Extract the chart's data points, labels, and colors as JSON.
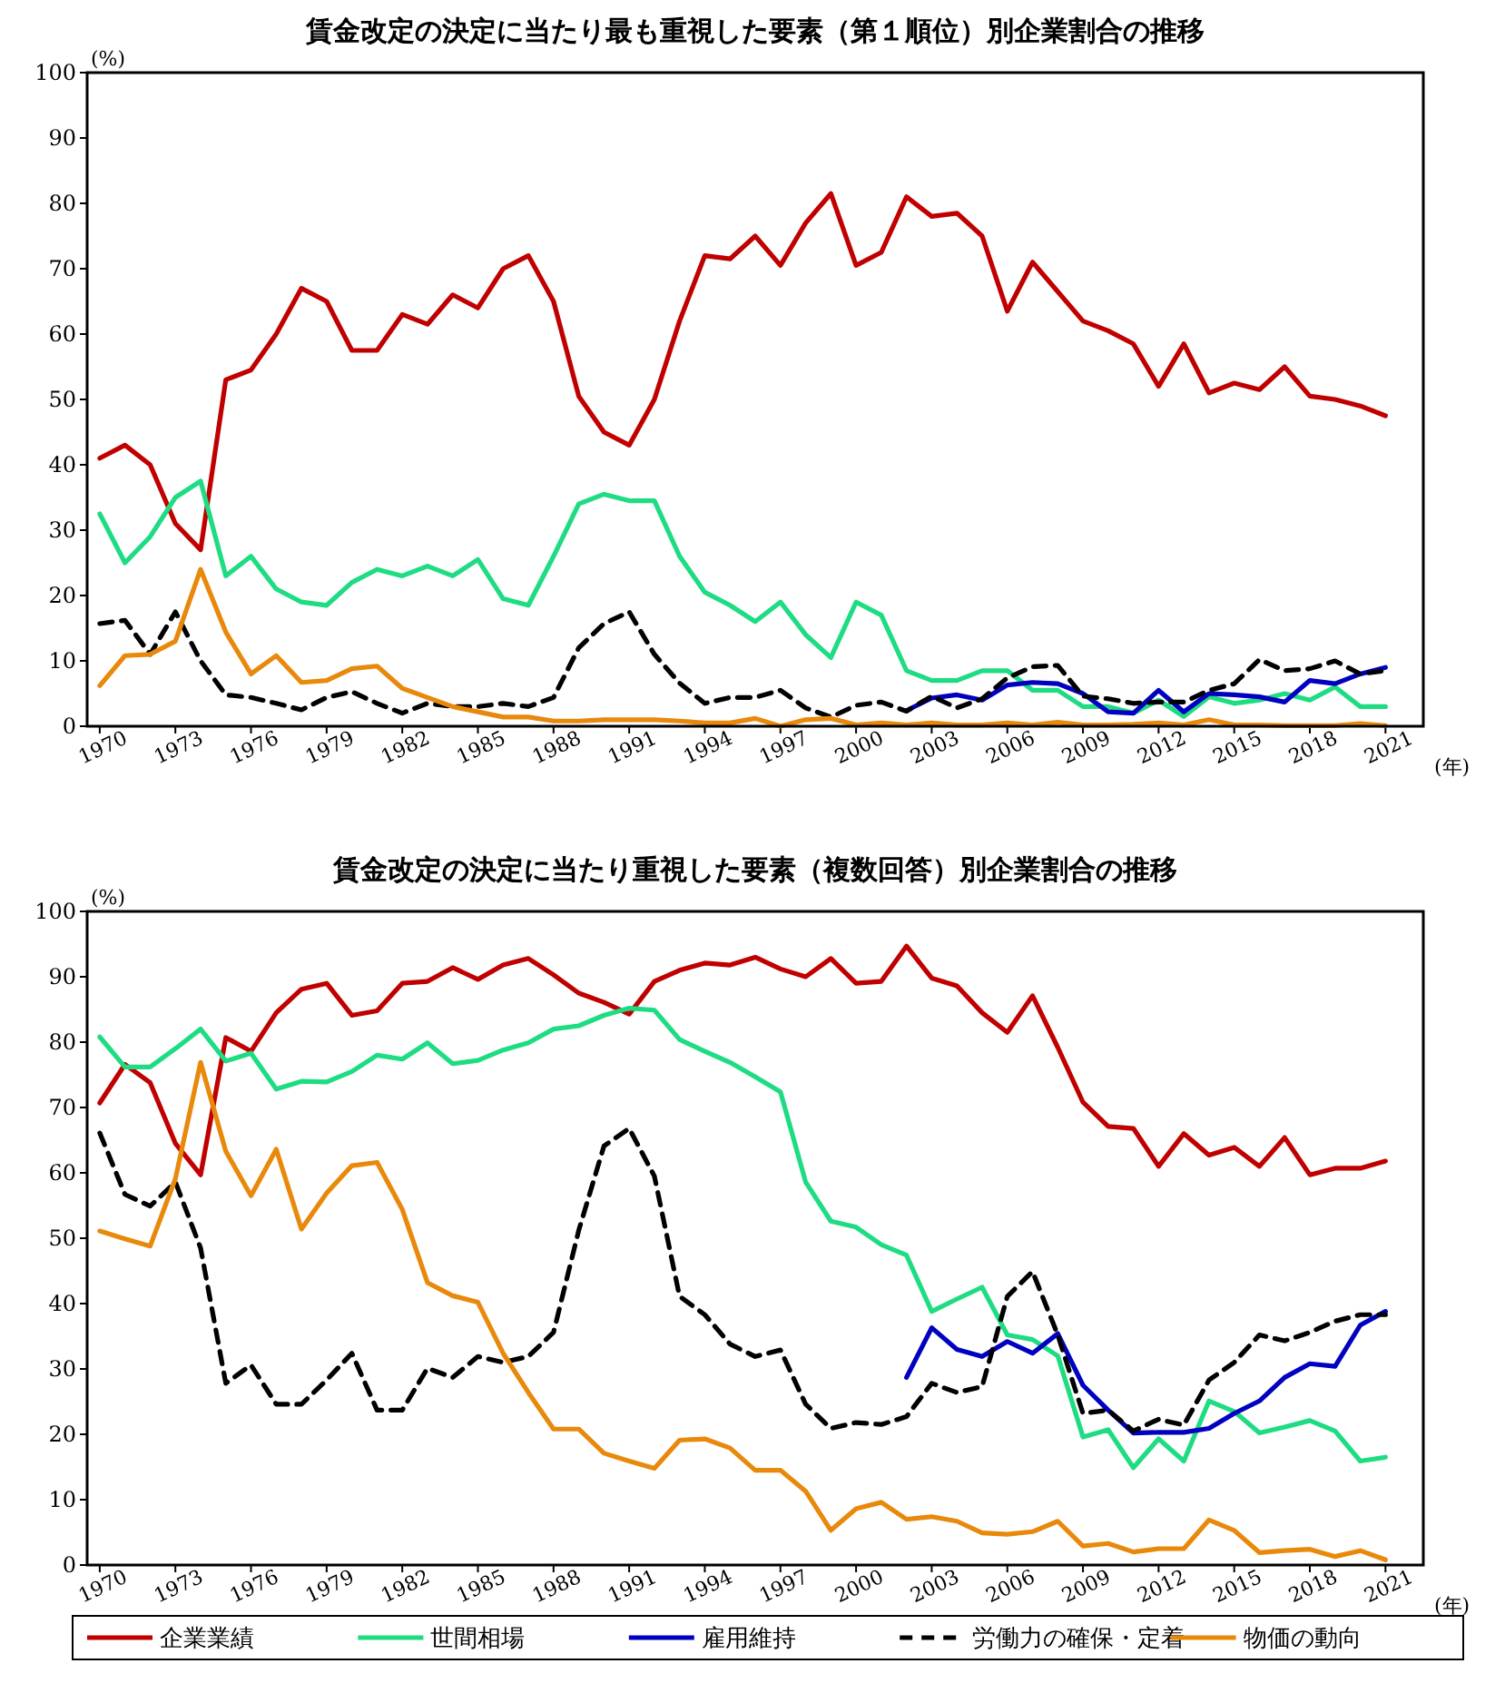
{
  "chart_data": [
    {
      "type": "line",
      "title": "賃金改定の決定に当たり最も重視した要素（第１順位）別企業割合の推移",
      "ylabel": "(%)",
      "xlabel": "(年)",
      "xlim": [
        1969.5,
        2022.5
      ],
      "ylim": [
        0,
        100
      ],
      "xticks": [
        1970,
        1973,
        1976,
        1979,
        1982,
        1985,
        1988,
        1991,
        1994,
        1997,
        2000,
        2003,
        2006,
        2009,
        2012,
        2015,
        2018,
        2021
      ],
      "yticks": [
        0,
        10,
        20,
        30,
        40,
        50,
        60,
        70,
        80,
        90,
        100
      ],
      "grid": false,
      "legend": false,
      "x": [
        1970,
        1971,
        1972,
        1973,
        1974,
        1975,
        1976,
        1977,
        1978,
        1979,
        1980,
        1981,
        1982,
        1983,
        1984,
        1985,
        1986,
        1987,
        1988,
        1989,
        1990,
        1991,
        1992,
        1993,
        1994,
        1995,
        1996,
        1997,
        1998,
        1999,
        2000,
        2001,
        2002,
        2003,
        2004,
        2005,
        2006,
        2007,
        2008,
        2009,
        2010,
        2011,
        2012,
        2013,
        2014,
        2015,
        2016,
        2017,
        2018,
        2019,
        2020,
        2021
      ],
      "series": [
        {
          "color": "#c00000",
          "values": [
            41,
            43,
            40,
            31,
            27,
            53,
            54.5,
            60,
            67,
            65,
            57.5,
            57.5,
            63,
            61.5,
            66,
            64,
            70,
            72,
            65,
            50.5,
            45,
            43,
            50,
            62,
            72,
            71.5,
            75,
            70.5,
            77,
            81.5,
            70.5,
            72.5,
            81,
            78,
            78.5,
            75,
            63.5,
            71,
            66.5,
            62,
            60.5,
            58.5,
            52,
            58.5,
            51,
            52.5,
            51.5,
            55,
            50.5,
            50,
            49,
            47.5
          ]
        },
        {
          "color": "#1edc82",
          "values": [
            32.5,
            25,
            29,
            35,
            37.5,
            23,
            26,
            21,
            19,
            18.5,
            22,
            24,
            23,
            24.5,
            23,
            25.5,
            19.5,
            18.5,
            26,
            34,
            35.5,
            34.5,
            34.5,
            26,
            20.5,
            18.5,
            16,
            19,
            14,
            10.5,
            19,
            17,
            8.5,
            7,
            7,
            8.5,
            8.5,
            5.5,
            5.5,
            3,
            3,
            2,
            4,
            1.5,
            4.5,
            3.5,
            4,
            5,
            4,
            6,
            3,
            3
          ]
        },
        {
          "color": "#0000c0",
          "values": [
            null,
            null,
            null,
            null,
            null,
            null,
            null,
            null,
            null,
            null,
            null,
            null,
            null,
            null,
            null,
            null,
            null,
            null,
            null,
            null,
            null,
            null,
            null,
            null,
            null,
            null,
            null,
            null,
            null,
            null,
            null,
            null,
            2.4,
            4.3,
            4.8,
            4,
            6.3,
            6.7,
            6.5,
            5,
            2.2,
            2,
            5.5,
            2.2,
            5,
            4.8,
            4.5,
            3.7,
            7,
            6.5,
            8,
            9
          ]
        },
        {
          "color": "#000000",
          "line_style": "dashed",
          "values": [
            15.7,
            16.2,
            11,
            17.5,
            10,
            4.8,
            4.4,
            3.5,
            2.5,
            4.4,
            5.3,
            3.5,
            2,
            3.5,
            3,
            3,
            3.5,
            3,
            4.4,
            12,
            15.7,
            17.5,
            11,
            6.6,
            3.5,
            4.4,
            4.4,
            5.5,
            2.8,
            1.4,
            3.2,
            3.7,
            2.3,
            4.6,
            2.8,
            4.2,
            7.4,
            9.1,
            9.3,
            4.6,
            4.2,
            3.5,
            3.7,
            3.7,
            5.5,
            6.5,
            10.2,
            8.5,
            8.8,
            10,
            8,
            8.5
          ]
        },
        {
          "color": "#e8890c",
          "values": [
            6.2,
            10.8,
            11,
            13,
            24,
            14.4,
            8,
            10.8,
            6.7,
            7,
            8.8,
            9.2,
            5.8,
            4.4,
            3,
            2.2,
            1.4,
            1.4,
            0.8,
            0.8,
            1,
            1,
            1,
            0.8,
            0.5,
            0.5,
            1.2,
            0,
            1,
            1.2,
            0.2,
            0.5,
            0.2,
            0.5,
            0.2,
            0.2,
            0.5,
            0.2,
            0.6,
            0.2,
            0.2,
            0.3,
            0.5,
            0.2,
            1,
            0.2,
            0.2,
            0.1,
            0.1,
            0.1,
            0.4,
            0.1
          ]
        }
      ]
    },
    {
      "type": "line",
      "title": "賃金改定の決定に当たり重視した要素（複数回答）別企業割合の推移",
      "ylabel": "(%)",
      "xlabel": "(年)",
      "xlim": [
        1969.5,
        2022.5
      ],
      "ylim": [
        0,
        100
      ],
      "xticks": [
        1970,
        1973,
        1976,
        1979,
        1982,
        1985,
        1988,
        1991,
        1994,
        1997,
        2000,
        2003,
        2006,
        2009,
        2012,
        2015,
        2018,
        2021
      ],
      "yticks": [
        0,
        10,
        20,
        30,
        40,
        50,
        60,
        70,
        80,
        90,
        100
      ],
      "grid": false,
      "legend": "bottom",
      "x": [
        1970,
        1971,
        1972,
        1973,
        1974,
        1975,
        1976,
        1977,
        1978,
        1979,
        1980,
        1981,
        1982,
        1983,
        1984,
        1985,
        1986,
        1987,
        1988,
        1989,
        1990,
        1991,
        1992,
        1993,
        1994,
        1995,
        1996,
        1997,
        1998,
        1999,
        2000,
        2001,
        2002,
        2003,
        2004,
        2005,
        2006,
        2007,
        2008,
        2009,
        2010,
        2011,
        2012,
        2013,
        2014,
        2015,
        2016,
        2017,
        2018,
        2019,
        2020,
        2021
      ],
      "series": [
        {
          "name": "企業業績",
          "color": "#c00000",
          "values": [
            70.7,
            76.6,
            73.8,
            64.5,
            59.7,
            80.7,
            78.6,
            84.5,
            88.1,
            89,
            84.1,
            84.8,
            89,
            89.3,
            91.4,
            89.6,
            91.8,
            92.8,
            90.3,
            87.5,
            86.1,
            84.3,
            89.3,
            91,
            92.1,
            91.8,
            93,
            91.2,
            90,
            92.8,
            89,
            89.3,
            94.7,
            89.8,
            88.6,
            84.5,
            81.5,
            87.1,
            79.2,
            70.8,
            67.1,
            66.8,
            61,
            66,
            62.7,
            63.9,
            61,
            65.4,
            59.7,
            60.7,
            60.7,
            61.8
          ]
        },
        {
          "name": "世間相場",
          "color": "#1edc82",
          "values": [
            80.8,
            76.2,
            76.2,
            79,
            82,
            77.1,
            78.3,
            72.8,
            74,
            73.9,
            75.5,
            78,
            77.4,
            79.9,
            76.7,
            77.2,
            78.8,
            79.9,
            82,
            82.5,
            84.1,
            85.2,
            84.9,
            80.4,
            78.6,
            76.9,
            74.7,
            72.4,
            58.6,
            52.6,
            51.7,
            49,
            47.4,
            38.8,
            40.7,
            42.5,
            35.2,
            34.5,
            32,
            19.6,
            20.7,
            14.9,
            19.3,
            15.9,
            25.1,
            23.5,
            20.2,
            21.1,
            22.1,
            20.5,
            15.9,
            16.5
          ]
        },
        {
          "name": "雇用維持",
          "color": "#0000c0",
          "values": [
            null,
            null,
            null,
            null,
            null,
            null,
            null,
            null,
            null,
            null,
            null,
            null,
            null,
            null,
            null,
            null,
            null,
            null,
            null,
            null,
            null,
            null,
            null,
            null,
            null,
            null,
            null,
            null,
            null,
            null,
            null,
            null,
            28.7,
            36.3,
            33,
            31.9,
            34.2,
            32.4,
            35.4,
            27.5,
            23.7,
            20.2,
            20.3,
            20.3,
            20.9,
            23.2,
            25.1,
            28.7,
            30.8,
            30.4,
            36.7,
            38.8
          ]
        },
        {
          "name": "労働力の確保・定着",
          "color": "#000000",
          "line_style": "dashed",
          "values": [
            66.1,
            56.7,
            54.9,
            58.6,
            48.5,
            27.8,
            30.6,
            24.6,
            24.6,
            28.3,
            32.4,
            23.7,
            23.7,
            30.1,
            28.7,
            31.9,
            31,
            31.9,
            35.6,
            51.2,
            64.1,
            66.8,
            59.5,
            41.1,
            38.3,
            33.8,
            31.9,
            32.9,
            24.6,
            20.9,
            21.8,
            21.5,
            22.7,
            27.8,
            26.4,
            27.3,
            41.1,
            44.9,
            35.2,
            23.2,
            23.7,
            20.5,
            22.3,
            21.4,
            28.3,
            31,
            35.2,
            34.3,
            35.6,
            37.3,
            38.3,
            38.3
          ]
        },
        {
          "name": "物価の動向",
          "color": "#e8890c",
          "values": [
            51.1,
            49.9,
            48.8,
            59.1,
            76.9,
            63.3,
            56.5,
            63.6,
            51.4,
            56.9,
            61.1,
            61.6,
            54.4,
            43.2,
            41.2,
            40.2,
            32.4,
            26.4,
            20.8,
            20.8,
            17.1,
            15.9,
            14.8,
            19.1,
            19.3,
            17.9,
            14.5,
            14.5,
            11.3,
            5.3,
            8.6,
            9.6,
            7,
            7.4,
            6.7,
            4.9,
            4.7,
            5.1,
            6.7,
            2.9,
            3.3,
            2,
            2.5,
            2.5,
            6.9,
            5.3,
            1.9,
            2.2,
            2.4,
            1.3,
            2.2,
            0.8
          ]
        }
      ]
    }
  ]
}
